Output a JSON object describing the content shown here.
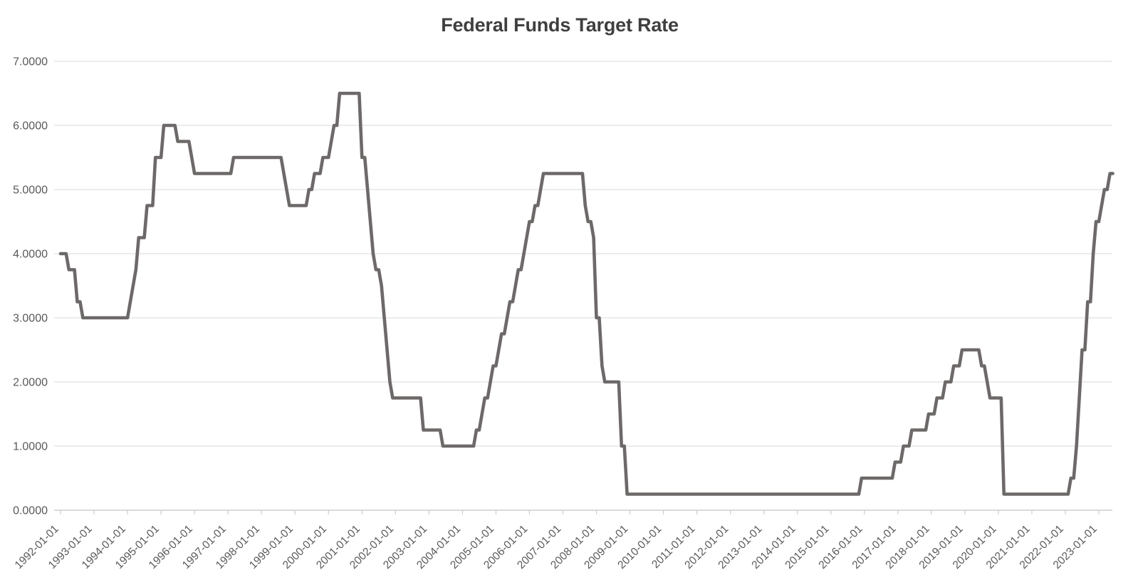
{
  "chart_data": {
    "type": "line",
    "title": "Federal Funds Target Rate",
    "frequency": "monthly",
    "x_start": "1992-01",
    "x_end": "2023-06",
    "ylim": [
      0,
      7
    ],
    "grid": true,
    "legend": "none",
    "colors": {
      "line": "#6e6969",
      "gridline": "#d9d9d9",
      "axis": "#cfcdcd",
      "tick_label": "#595959",
      "title": "#3f3f3f"
    },
    "y_tick_labels": [
      "7.0000",
      "6.0000",
      "5.0000",
      "4.0000",
      "3.0000",
      "2.0000",
      "1.0000",
      "0.0000"
    ],
    "x_tick_labels": [
      "1992-01-01",
      "1993-01-01",
      "1994-01-01",
      "1995-01-01",
      "1996-01-01",
      "1997-01-01",
      "1998-01-01",
      "1999-01-01",
      "2000-01-01",
      "2001-01-01",
      "2002-01-01",
      "2003-01-01",
      "2004-01-01",
      "2005-01-01",
      "2006-01-01",
      "2007-01-01",
      "2008-01-01",
      "2009-01-01",
      "2010-01-01",
      "2011-01-01",
      "2012-01-01",
      "2013-01-01",
      "2014-01-01",
      "2015-01-01",
      "2016-01-01",
      "2017-01-01",
      "2018-01-01",
      "2019-01-01",
      "2020-01-01",
      "2021-01-01",
      "2022-01-01",
      "2023-01-01"
    ],
    "series": [
      {
        "name": "Federal Funds Target Rate",
        "values_by_year": [
          {
            "year": 1992,
            "values": [
              4.0,
              4.0,
              4.0,
              3.75,
              3.75,
              3.75,
              3.25,
              3.25,
              3.0,
              3.0,
              3.0,
              3.0
            ]
          },
          {
            "year": 1993,
            "values": [
              3.0,
              3.0,
              3.0,
              3.0,
              3.0,
              3.0,
              3.0,
              3.0,
              3.0,
              3.0,
              3.0,
              3.0
            ]
          },
          {
            "year": 1994,
            "values": [
              3.0,
              3.25,
              3.5,
              3.75,
              4.25,
              4.25,
              4.25,
              4.75,
              4.75,
              4.75,
              5.5,
              5.5
            ]
          },
          {
            "year": 1995,
            "values": [
              5.5,
              6.0,
              6.0,
              6.0,
              6.0,
              6.0,
              5.75,
              5.75,
              5.75,
              5.75,
              5.75,
              5.5
            ]
          },
          {
            "year": 1996,
            "values": [
              5.25,
              5.25,
              5.25,
              5.25,
              5.25,
              5.25,
              5.25,
              5.25,
              5.25,
              5.25,
              5.25,
              5.25
            ]
          },
          {
            "year": 1997,
            "values": [
              5.25,
              5.25,
              5.5,
              5.5,
              5.5,
              5.5,
              5.5,
              5.5,
              5.5,
              5.5,
              5.5,
              5.5
            ]
          },
          {
            "year": 1998,
            "values": [
              5.5,
              5.5,
              5.5,
              5.5,
              5.5,
              5.5,
              5.5,
              5.5,
              5.25,
              5.0,
              4.75,
              4.75
            ]
          },
          {
            "year": 1999,
            "values": [
              4.75,
              4.75,
              4.75,
              4.75,
              4.75,
              5.0,
              5.0,
              5.25,
              5.25,
              5.25,
              5.5,
              5.5
            ]
          },
          {
            "year": 2000,
            "values": [
              5.5,
              5.75,
              6.0,
              6.0,
              6.5,
              6.5,
              6.5,
              6.5,
              6.5,
              6.5,
              6.5,
              6.5
            ]
          },
          {
            "year": 2001,
            "values": [
              5.5,
              5.5,
              5.0,
              4.5,
              4.0,
              3.75,
              3.75,
              3.5,
              3.0,
              2.5,
              2.0,
              1.75
            ]
          },
          {
            "year": 2002,
            "values": [
              1.75,
              1.75,
              1.75,
              1.75,
              1.75,
              1.75,
              1.75,
              1.75,
              1.75,
              1.75,
              1.25,
              1.25
            ]
          },
          {
            "year": 2003,
            "values": [
              1.25,
              1.25,
              1.25,
              1.25,
              1.25,
              1.0,
              1.0,
              1.0,
              1.0,
              1.0,
              1.0,
              1.0
            ]
          },
          {
            "year": 2004,
            "values": [
              1.0,
              1.0,
              1.0,
              1.0,
              1.0,
              1.25,
              1.25,
              1.5,
              1.75,
              1.75,
              2.0,
              2.25
            ]
          },
          {
            "year": 2005,
            "values": [
              2.25,
              2.5,
              2.75,
              2.75,
              3.0,
              3.25,
              3.25,
              3.5,
              3.75,
              3.75,
              4.0,
              4.25
            ]
          },
          {
            "year": 2006,
            "values": [
              4.5,
              4.5,
              4.75,
              4.75,
              5.0,
              5.25,
              5.25,
              5.25,
              5.25,
              5.25,
              5.25,
              5.25
            ]
          },
          {
            "year": 2007,
            "values": [
              5.25,
              5.25,
              5.25,
              5.25,
              5.25,
              5.25,
              5.25,
              5.25,
              4.75,
              4.5,
              4.5,
              4.25
            ]
          },
          {
            "year": 2008,
            "values": [
              3.0,
              3.0,
              2.25,
              2.0,
              2.0,
              2.0,
              2.0,
              2.0,
              2.0,
              1.0,
              1.0,
              0.25
            ]
          },
          {
            "year": 2009,
            "values": [
              0.25,
              0.25,
              0.25,
              0.25,
              0.25,
              0.25,
              0.25,
              0.25,
              0.25,
              0.25,
              0.25,
              0.25
            ]
          },
          {
            "year": 2010,
            "values": [
              0.25,
              0.25,
              0.25,
              0.25,
              0.25,
              0.25,
              0.25,
              0.25,
              0.25,
              0.25,
              0.25,
              0.25
            ]
          },
          {
            "year": 2011,
            "values": [
              0.25,
              0.25,
              0.25,
              0.25,
              0.25,
              0.25,
              0.25,
              0.25,
              0.25,
              0.25,
              0.25,
              0.25
            ]
          },
          {
            "year": 2012,
            "values": [
              0.25,
              0.25,
              0.25,
              0.25,
              0.25,
              0.25,
              0.25,
              0.25,
              0.25,
              0.25,
              0.25,
              0.25
            ]
          },
          {
            "year": 2013,
            "values": [
              0.25,
              0.25,
              0.25,
              0.25,
              0.25,
              0.25,
              0.25,
              0.25,
              0.25,
              0.25,
              0.25,
              0.25
            ]
          },
          {
            "year": 2014,
            "values": [
              0.25,
              0.25,
              0.25,
              0.25,
              0.25,
              0.25,
              0.25,
              0.25,
              0.25,
              0.25,
              0.25,
              0.25
            ]
          },
          {
            "year": 2015,
            "values": [
              0.25,
              0.25,
              0.25,
              0.25,
              0.25,
              0.25,
              0.25,
              0.25,
              0.25,
              0.25,
              0.25,
              0.5
            ]
          },
          {
            "year": 2016,
            "values": [
              0.5,
              0.5,
              0.5,
              0.5,
              0.5,
              0.5,
              0.5,
              0.5,
              0.5,
              0.5,
              0.5,
              0.75
            ]
          },
          {
            "year": 2017,
            "values": [
              0.75,
              0.75,
              1.0,
              1.0,
              1.0,
              1.25,
              1.25,
              1.25,
              1.25,
              1.25,
              1.25,
              1.5
            ]
          },
          {
            "year": 2018,
            "values": [
              1.5,
              1.5,
              1.75,
              1.75,
              1.75,
              2.0,
              2.0,
              2.0,
              2.25,
              2.25,
              2.25,
              2.5
            ]
          },
          {
            "year": 2019,
            "values": [
              2.5,
              2.5,
              2.5,
              2.5,
              2.5,
              2.5,
              2.25,
              2.25,
              2.0,
              1.75,
              1.75,
              1.75
            ]
          },
          {
            "year": 2020,
            "values": [
              1.75,
              1.75,
              0.25,
              0.25,
              0.25,
              0.25,
              0.25,
              0.25,
              0.25,
              0.25,
              0.25,
              0.25
            ]
          },
          {
            "year": 2021,
            "values": [
              0.25,
              0.25,
              0.25,
              0.25,
              0.25,
              0.25,
              0.25,
              0.25,
              0.25,
              0.25,
              0.25,
              0.25
            ]
          },
          {
            "year": 2022,
            "values": [
              0.25,
              0.25,
              0.5,
              0.5,
              1.0,
              1.75,
              2.5,
              2.5,
              3.25,
              3.25,
              4.0,
              4.5
            ]
          },
          {
            "year": 2023,
            "values": [
              4.5,
              4.75,
              5.0,
              5.0,
              5.25,
              5.25
            ]
          }
        ]
      }
    ]
  }
}
